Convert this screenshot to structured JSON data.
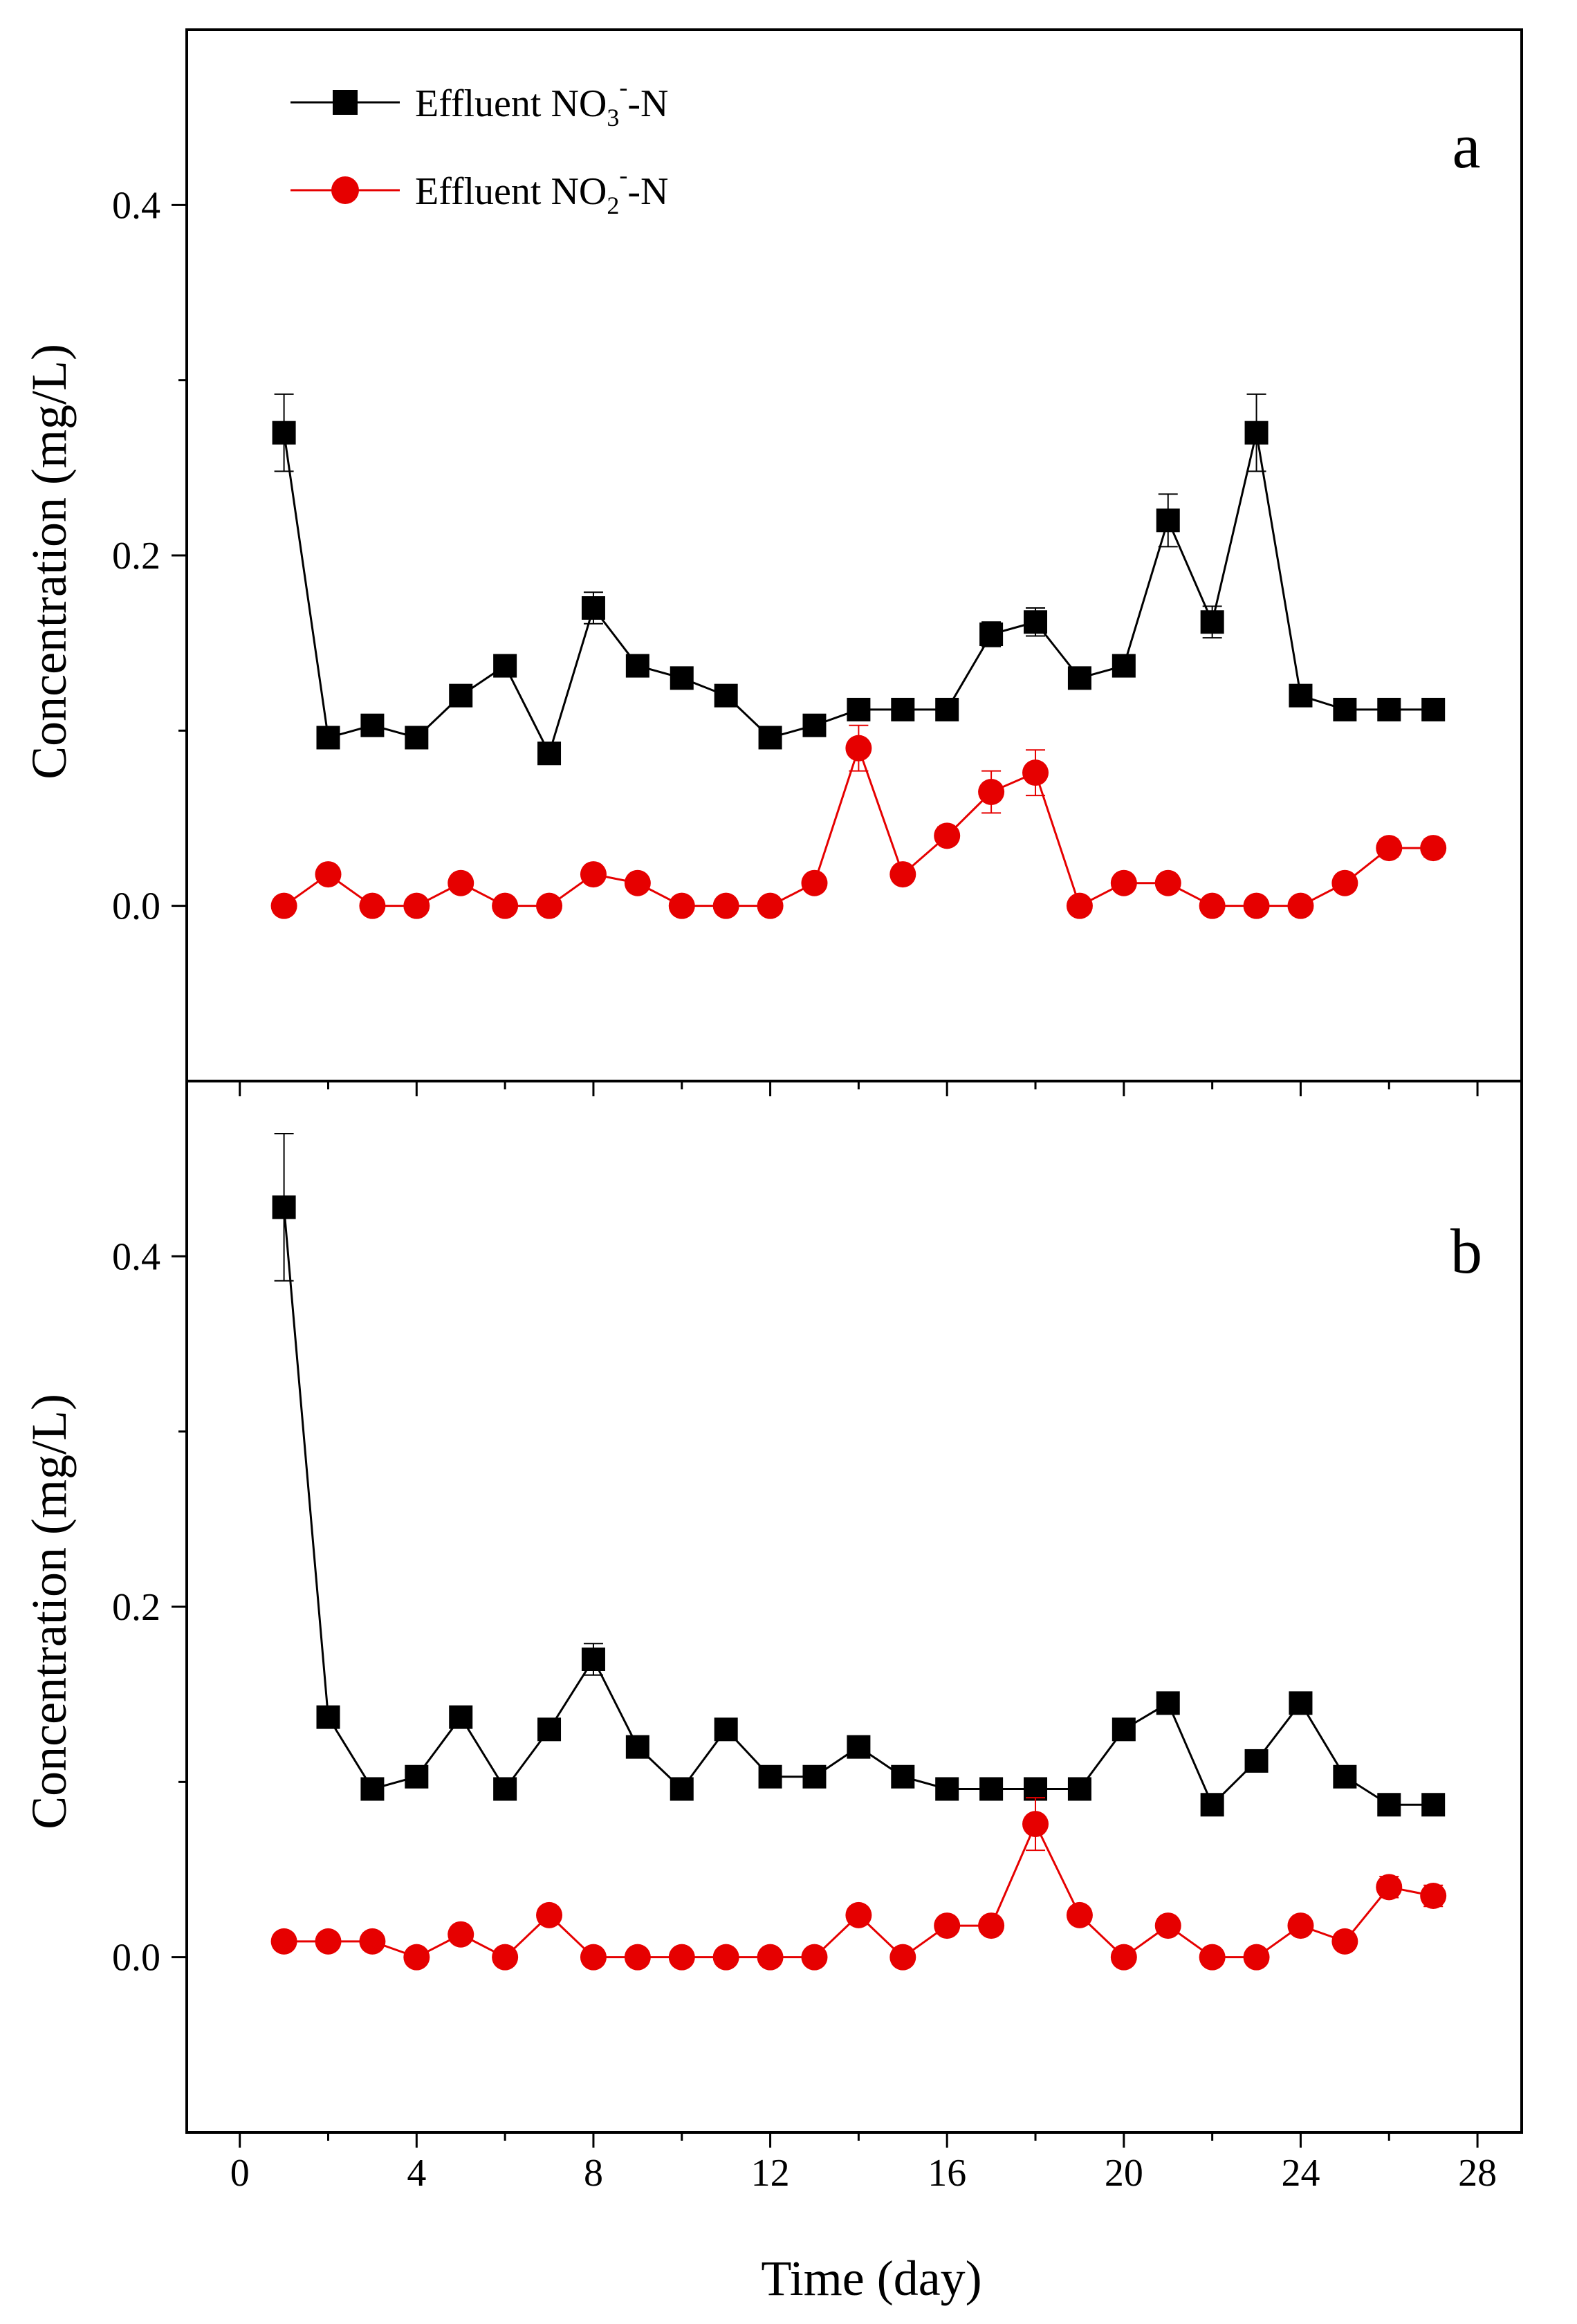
{
  "figure": {
    "x_label": "Time (day)",
    "x_ticks": [
      "0",
      "4",
      "8",
      "12",
      "16",
      "20",
      "24",
      "28"
    ],
    "legend": [
      {
        "prefix": "Effluent NO",
        "subscript": "3",
        "superscript": "-",
        "suffix": "-N",
        "series": "nitrate"
      },
      {
        "prefix": "Effluent NO",
        "subscript": "2",
        "superscript": "-",
        "suffix": "-N",
        "series": "nitrite"
      }
    ],
    "colors": {
      "nitrate": "#000000",
      "nitrite": "#e60000"
    }
  },
  "chart_data": [
    {
      "type": "line",
      "panel": "a",
      "title": "",
      "xlabel": "Time (day)",
      "ylabel": "Concentration (mg/L)",
      "xlim": [
        -1.2,
        29
      ],
      "ylim": [
        -0.1,
        0.5
      ],
      "x_ticks": [
        0,
        4,
        8,
        12,
        16,
        20,
        24,
        28
      ],
      "y_ticks": [
        0.0,
        0.2,
        0.4
      ],
      "y_tick_labels": [
        "0.0",
        "0.2",
        "0.4"
      ],
      "grid": false,
      "legend_position": "top-left",
      "series": [
        {
          "name": "Effluent NO3--N",
          "marker": "square",
          "color": "#000000",
          "x": [
            1,
            2,
            3,
            4,
            5,
            6,
            7,
            8,
            9,
            10,
            11,
            12,
            13,
            14,
            15,
            16,
            17,
            18,
            19,
            20,
            21,
            22,
            23,
            24,
            25,
            26,
            27
          ],
          "values": [
            0.27,
            0.096,
            0.103,
            0.096,
            0.12,
            0.137,
            0.087,
            0.17,
            0.137,
            0.13,
            0.12,
            0.096,
            0.103,
            0.112,
            0.112,
            0.112,
            0.155,
            0.162,
            0.13,
            0.137,
            0.22,
            0.162,
            0.27,
            0.12,
            0.112,
            0.112,
            0.112
          ],
          "errors": [
            0.022,
            0,
            0,
            0,
            0,
            0,
            0,
            0.009,
            0,
            0,
            0,
            0,
            0,
            0,
            0,
            0,
            0.007,
            0.008,
            0,
            0,
            0.015,
            0.009,
            0.022,
            0,
            0,
            0,
            0
          ]
        },
        {
          "name": "Effluent NO2--N",
          "marker": "circle",
          "color": "#e60000",
          "x": [
            1,
            2,
            3,
            4,
            5,
            6,
            7,
            8,
            9,
            10,
            11,
            12,
            13,
            14,
            15,
            16,
            17,
            18,
            19,
            20,
            21,
            22,
            23,
            24,
            25,
            26,
            27
          ],
          "values": [
            0,
            0.018,
            0,
            0,
            0.013,
            0,
            0,
            0.018,
            0.013,
            0,
            0,
            0,
            0.013,
            0.09,
            0.018,
            0.04,
            0.065,
            0.076,
            0,
            0.013,
            0.013,
            0,
            0,
            0,
            0.013,
            0.033,
            0.033
          ],
          "errors": [
            0,
            0,
            0,
            0,
            0,
            0,
            0,
            0,
            0,
            0,
            0,
            0,
            0,
            0.013,
            0,
            0.005,
            0.012,
            0.013,
            0,
            0,
            0,
            0,
            0,
            0,
            0,
            0.005,
            0.005
          ]
        }
      ]
    },
    {
      "type": "line",
      "panel": "b",
      "title": "",
      "xlabel": "Time (day)",
      "ylabel": "Concentration (mg/L)",
      "xlim": [
        -1.2,
        29
      ],
      "ylim": [
        -0.1,
        0.5
      ],
      "x_ticks": [
        0,
        4,
        8,
        12,
        16,
        20,
        24,
        28
      ],
      "y_ticks": [
        0.0,
        0.2,
        0.4
      ],
      "y_tick_labels": [
        "0.0",
        "0.2",
        "0.4"
      ],
      "grid": false,
      "legend_position": "none",
      "series": [
        {
          "name": "Effluent NO3--N",
          "marker": "square",
          "color": "#000000",
          "x": [
            1,
            2,
            3,
            4,
            5,
            6,
            7,
            8,
            9,
            10,
            11,
            12,
            13,
            14,
            15,
            16,
            17,
            18,
            19,
            20,
            21,
            22,
            23,
            24,
            25,
            26,
            27
          ],
          "values": [
            0.428,
            0.137,
            0.096,
            0.103,
            0.137,
            0.096,
            0.13,
            0.17,
            0.12,
            0.096,
            0.13,
            0.103,
            0.103,
            0.12,
            0.103,
            0.096,
            0.096,
            0.096,
            0.096,
            0.13,
            0.145,
            0.087,
            0.112,
            0.145,
            0.103,
            0.087,
            0.087
          ],
          "errors": [
            0.042,
            0,
            0,
            0,
            0,
            0,
            0,
            0.009,
            0,
            0,
            0,
            0,
            0,
            0,
            0,
            0,
            0,
            0,
            0,
            0,
            0.003,
            0,
            0,
            0.003,
            0,
            0,
            0
          ]
        },
        {
          "name": "Effluent NO2--N",
          "marker": "circle",
          "color": "#e60000",
          "x": [
            1,
            2,
            3,
            4,
            5,
            6,
            7,
            8,
            9,
            10,
            11,
            12,
            13,
            14,
            15,
            16,
            17,
            18,
            19,
            20,
            21,
            22,
            23,
            24,
            25,
            26,
            27
          ],
          "values": [
            0.009,
            0.009,
            0.009,
            0,
            0.013,
            0,
            0.024,
            0,
            0,
            0,
            0,
            0,
            0,
            0.024,
            0,
            0.018,
            0.018,
            0.076,
            0.024,
            0,
            0.018,
            0,
            0,
            0.018,
            0.009,
            0.04,
            0.035
          ],
          "errors": [
            0,
            0,
            0,
            0,
            0,
            0,
            0.004,
            0,
            0,
            0,
            0,
            0,
            0,
            0.004,
            0,
            0,
            0,
            0.015,
            0.004,
            0,
            0,
            0,
            0,
            0,
            0,
            0.006,
            0.006
          ]
        }
      ]
    }
  ]
}
